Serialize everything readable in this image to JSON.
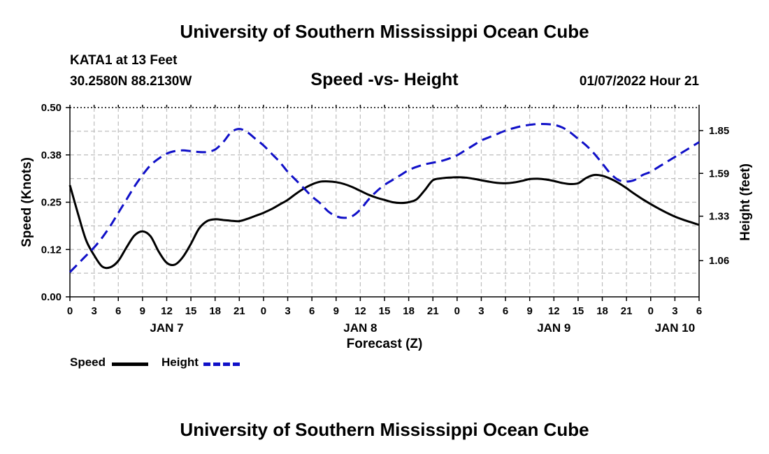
{
  "page": {
    "title_top": "University of Southern Mississippi Ocean Cube",
    "title_bottom": "University of Southern Mississippi Ocean Cube",
    "station_line1": "KATA1 at 13 Feet",
    "station_line2": "30.2580N  88.2130W",
    "datetime": "01/07/2022 Hour 21"
  },
  "chart_data": {
    "type": "line",
    "title": "Speed -vs- Height",
    "xlabel": "Forecast (Z)",
    "ylabel_left": "Speed (Knots)",
    "ylabel_right": "Height (feet)",
    "x_range_hours": [
      0,
      78
    ],
    "ylim_left": [
      0,
      0.5
    ],
    "yticks_left": [
      "0.00",
      "0.12",
      "0.25",
      "0.38",
      "0.50"
    ],
    "ylim_right": [
      0.84,
      1.99
    ],
    "yticks_right": [
      1.06,
      1.33,
      1.59,
      1.85
    ],
    "x_tick_labels": [
      "0",
      "3",
      "6",
      "9",
      "12",
      "15",
      "18",
      "21",
      "0",
      "3",
      "6",
      "9",
      "12",
      "15",
      "18",
      "21",
      "0",
      "3",
      "6",
      "9",
      "12",
      "15",
      "18",
      "21",
      "0",
      "3",
      "6"
    ],
    "day_labels": [
      {
        "label": "JAN 7",
        "hour": 12
      },
      {
        "label": "JAN 8",
        "hour": 36
      },
      {
        "label": "JAN 9",
        "hour": 60
      },
      {
        "label": "JAN 10",
        "hour": 75
      }
    ],
    "grid": true,
    "series": [
      {
        "name": "Speed",
        "axis": "left",
        "color": "#000000",
        "dash": "solid",
        "x": [
          0,
          1,
          2,
          3,
          4,
          5,
          6,
          7,
          8,
          9,
          10,
          11,
          12,
          13,
          14,
          15,
          16,
          17,
          18,
          19,
          20,
          21,
          22,
          23,
          24,
          25,
          26,
          27,
          28,
          29,
          30,
          31,
          32,
          33,
          34,
          35,
          36,
          37,
          38,
          39,
          40,
          41,
          42,
          43,
          44,
          45,
          46,
          47,
          48,
          49,
          50,
          51,
          52,
          53,
          54,
          55,
          56,
          57,
          58,
          59,
          60,
          61,
          62,
          63,
          64,
          65,
          66,
          67,
          68,
          69,
          70,
          71,
          72,
          73,
          74,
          75,
          76,
          77,
          78
        ],
        "values": [
          0.295,
          0.22,
          0.15,
          0.11,
          0.08,
          0.078,
          0.095,
          0.13,
          0.162,
          0.173,
          0.16,
          0.12,
          0.09,
          0.085,
          0.105,
          0.14,
          0.18,
          0.2,
          0.205,
          0.203,
          0.201,
          0.2,
          0.206,
          0.214,
          0.222,
          0.232,
          0.244,
          0.256,
          0.272,
          0.286,
          0.297,
          0.304,
          0.305,
          0.303,
          0.298,
          0.29,
          0.28,
          0.27,
          0.262,
          0.256,
          0.25,
          0.248,
          0.25,
          0.258,
          0.282,
          0.308,
          0.313,
          0.315,
          0.316,
          0.315,
          0.312,
          0.308,
          0.304,
          0.301,
          0.3,
          0.302,
          0.306,
          0.311,
          0.312,
          0.31,
          0.306,
          0.301,
          0.298,
          0.3,
          0.314,
          0.322,
          0.32,
          0.312,
          0.301,
          0.287,
          0.272,
          0.258,
          0.245,
          0.233,
          0.222,
          0.212,
          0.204,
          0.197,
          0.19
        ]
      },
      {
        "name": "Height",
        "axis": "right",
        "color": "#1010c8",
        "dash": "dashed",
        "x": [
          0,
          1,
          2,
          3,
          4,
          5,
          6,
          7,
          8,
          9,
          10,
          11,
          12,
          13,
          14,
          15,
          16,
          17,
          18,
          19,
          20,
          21,
          22,
          23,
          24,
          25,
          26,
          27,
          28,
          29,
          30,
          31,
          32,
          33,
          34,
          35,
          36,
          37,
          38,
          39,
          40,
          41,
          42,
          43,
          44,
          45,
          46,
          47,
          48,
          49,
          50,
          51,
          52,
          53,
          54,
          55,
          56,
          57,
          58,
          59,
          60,
          61,
          62,
          63,
          64,
          65,
          66,
          67,
          68,
          69,
          70,
          71,
          72,
          73,
          74,
          75,
          76,
          77,
          78
        ],
        "values": [
          0.99,
          1.04,
          1.09,
          1.14,
          1.2,
          1.27,
          1.35,
          1.43,
          1.51,
          1.58,
          1.64,
          1.68,
          1.71,
          1.725,
          1.73,
          1.725,
          1.72,
          1.72,
          1.735,
          1.78,
          1.84,
          1.86,
          1.84,
          1.8,
          1.76,
          1.71,
          1.66,
          1.6,
          1.55,
          1.5,
          1.45,
          1.41,
          1.36,
          1.33,
          1.32,
          1.33,
          1.37,
          1.43,
          1.48,
          1.52,
          1.55,
          1.58,
          1.61,
          1.63,
          1.645,
          1.655,
          1.665,
          1.68,
          1.7,
          1.73,
          1.76,
          1.79,
          1.81,
          1.83,
          1.85,
          1.865,
          1.877,
          1.885,
          1.89,
          1.89,
          1.885,
          1.87,
          1.84,
          1.8,
          1.76,
          1.71,
          1.65,
          1.59,
          1.55,
          1.54,
          1.55,
          1.58,
          1.6,
          1.63,
          1.66,
          1.69,
          1.72,
          1.75,
          1.78
        ]
      }
    ],
    "legend": [
      "Speed",
      "Height"
    ]
  }
}
